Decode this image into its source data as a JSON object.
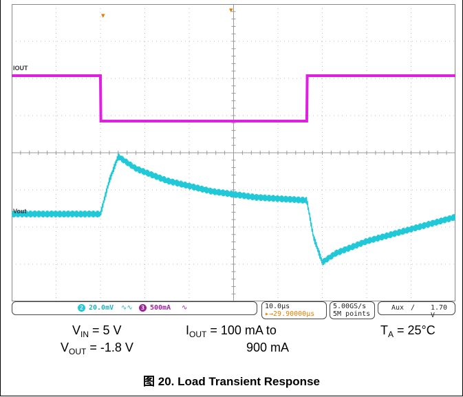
{
  "channels": [
    {
      "id": "1",
      "label": "IOUT",
      "color": "#e020e0",
      "scale": "500mA"
    },
    {
      "id": "2",
      "label": "Vout",
      "color": "#20c8d8",
      "scale": "20.0mV"
    }
  ],
  "status": {
    "ch2_badge": "2",
    "ch2_scale": "20.0mV",
    "ch2_bw": "∿∿",
    "ch3_badge": "3",
    "ch3_scale": "500mA",
    "ch3_bw": "∿",
    "timebase": "10.0μs",
    "trigger_pos": "▸→29.90000μs",
    "sample_rate": "5.00GS/s",
    "record_length": "5M points",
    "trigger_source": "Aux",
    "trigger_slope": "∕",
    "trigger_level": "1.70 V"
  },
  "conditions": {
    "vin": {
      "sym": "V",
      "sub": "IN",
      "rest": " = 5 V"
    },
    "vout": {
      "sym": "V",
      "sub": "OUT",
      "rest": " = -1.8 V"
    },
    "iout_line1": {
      "sym": "I",
      "sub": "OUT",
      "rest": " = 100 mA to"
    },
    "iout_line2": "900 mA",
    "ta": {
      "sym": "T",
      "sub": "A",
      "rest": " = 25°C"
    }
  },
  "figure_title": "图 20. Load Transient Response",
  "chart_data": {
    "type": "line",
    "x_units": "μs",
    "x_divisions": 10,
    "x_per_div": 10,
    "series": [
      {
        "name": "IOUT",
        "units": "mA",
        "per_div": 500,
        "x": [
          0,
          20,
          20.1,
          66.5,
          66.6,
          100
        ],
        "y": [
          100,
          100,
          900,
          900,
          100,
          100
        ]
      },
      {
        "name": "Vout",
        "units": "mV",
        "per_div": 20,
        "x": [
          0,
          20,
          22,
          24,
          28,
          35,
          45,
          55,
          66.5,
          68,
          70,
          73,
          80,
          90,
          100
        ],
        "y": [
          0,
          0,
          22,
          38,
          30,
          22,
          15,
          11,
          9,
          -15,
          -32,
          -26,
          -18,
          -10,
          -2
        ]
      }
    ],
    "grid": true
  }
}
